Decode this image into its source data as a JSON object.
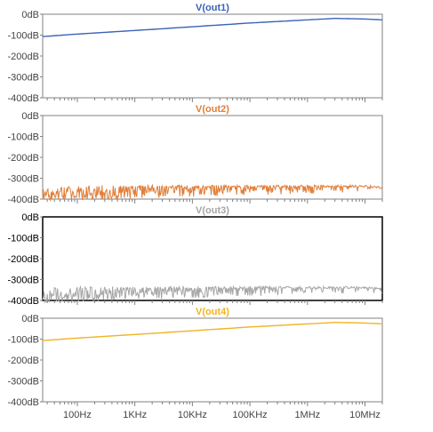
{
  "chart_data": [
    {
      "type": "line",
      "title": "V(out1)",
      "color": "#3a62b8",
      "trace_style": "smooth",
      "x_scale": "log",
      "x_unit": "Hz",
      "y_unit": "dB",
      "ylim": [
        -400,
        0
      ],
      "y_ticks": [
        "0dB",
        "-100dB",
        "-200dB",
        "-300dB",
        "-400dB"
      ],
      "x": [
        25,
        100,
        1000,
        10000,
        100000,
        1000000,
        3000000,
        10000000,
        20000000
      ],
      "y": [
        -107,
        -95,
        -78,
        -60,
        -42,
        -27,
        -20,
        -23,
        -27
      ]
    },
    {
      "type": "line",
      "title": "V(out2)",
      "color": "#e07f3a",
      "trace_style": "noise",
      "x_scale": "log",
      "x_unit": "Hz",
      "y_unit": "dB",
      "ylim": [
        -400,
        0
      ],
      "y_ticks": [
        "0dB",
        "-100dB",
        "-200dB",
        "-300dB",
        "-400dB"
      ],
      "x": [
        25,
        100,
        1000,
        10000,
        100000,
        1000000,
        10000000,
        20000000
      ],
      "y": [
        -338,
        -338,
        -338,
        -338,
        -338,
        -338,
        -338,
        -345
      ],
      "noise_floor": -410
    },
    {
      "type": "line",
      "title": "V(out3)",
      "color": "#a6a6a6",
      "trace_style": "noise",
      "highlighted": true,
      "x_scale": "log",
      "x_unit": "Hz",
      "y_unit": "dB",
      "ylim": [
        -400,
        0
      ],
      "y_ticks": [
        "0dB",
        "-100dB",
        "-200dB",
        "-300dB",
        "-400dB"
      ],
      "x": [
        25,
        100,
        1000,
        10000,
        100000,
        1000000,
        10000000,
        20000000
      ],
      "y": [
        -338,
        -338,
        -338,
        -338,
        -338,
        -338,
        -338,
        -345
      ],
      "noise_floor": -410
    },
    {
      "type": "line",
      "title": "V(out4)",
      "color": "#f0b323",
      "trace_style": "smooth",
      "x_scale": "log",
      "x_unit": "Hz",
      "y_unit": "dB",
      "ylim": [
        -400,
        0
      ],
      "y_ticks": [
        "0dB",
        "-100dB",
        "-200dB",
        "-300dB",
        "-400dB"
      ],
      "x_ticks": [
        {
          "value": 100,
          "label": "100Hz"
        },
        {
          "value": 1000,
          "label": "1KHz"
        },
        {
          "value": 10000,
          "label": "10KHz"
        },
        {
          "value": 100000,
          "label": "100KHz"
        },
        {
          "value": 1000000,
          "label": "1MHz"
        },
        {
          "value": 10000000,
          "label": "10MHz"
        }
      ],
      "x": [
        25,
        100,
        1000,
        10000,
        100000,
        1000000,
        3000000,
        10000000,
        20000000
      ],
      "y": [
        -107,
        -95,
        -78,
        -60,
        -42,
        -27,
        -20,
        -23,
        -27
      ]
    }
  ],
  "axis": {
    "x_range_hz": [
      25,
      20000000
    ],
    "x_minor_tick_multipliers": [
      2,
      3,
      4,
      5,
      6,
      7,
      8,
      9
    ]
  }
}
